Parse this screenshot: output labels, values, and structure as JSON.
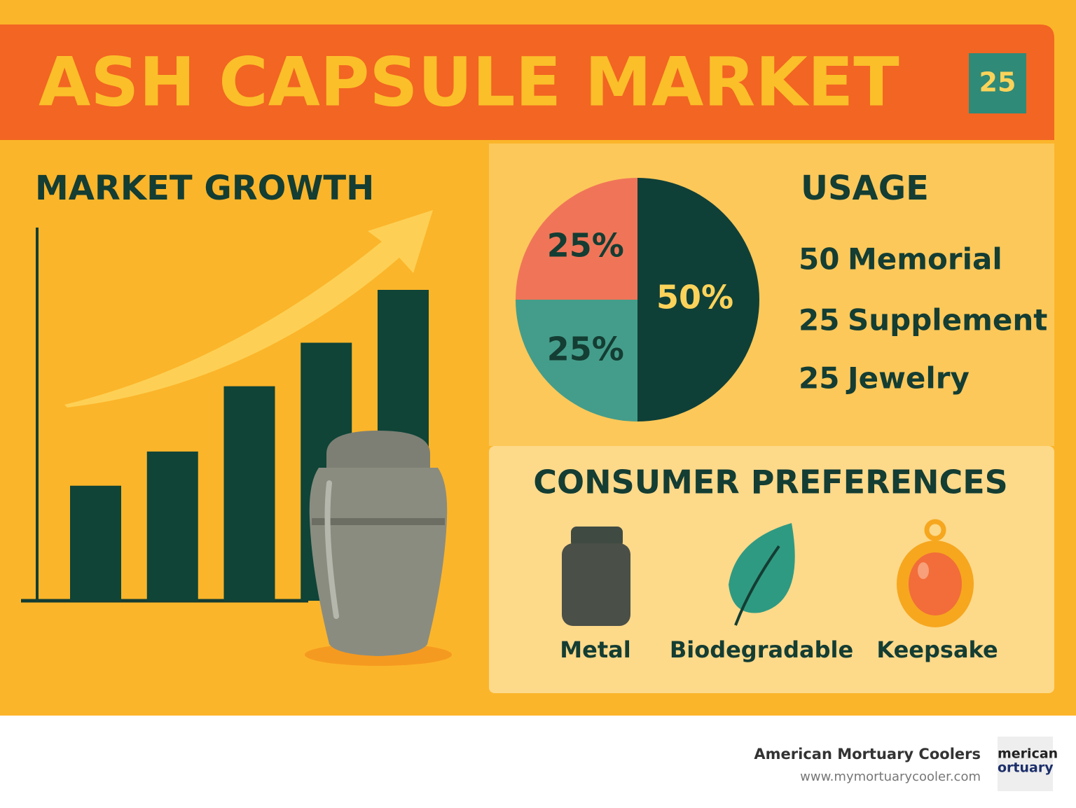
{
  "header": {
    "title": "ASH CAPSULE MARKET",
    "badge": "25"
  },
  "chart_data": [
    {
      "type": "bar",
      "title": "MARKET GROWTH",
      "categories": [
        null,
        null,
        null,
        null,
        null
      ],
      "values": [
        37,
        48,
        69,
        83,
        100
      ],
      "ylim": [
        0,
        100
      ],
      "color": "#0f4437"
    },
    {
      "type": "pie",
      "title": "USAGE",
      "categories": [
        "Memorial",
        "Supplement",
        "Jewelry"
      ],
      "values": [
        50,
        25,
        25
      ],
      "value_labels": [
        "50%",
        "25%",
        "25%"
      ],
      "colors": [
        "#0f4038",
        "#449d8a",
        "#f07558"
      ],
      "label_colors": [
        "#fbd35a",
        "#143d33",
        "#143d33"
      ]
    }
  ],
  "preferences": {
    "title": "CONSUMER PREFERENCES",
    "items": [
      "Metal",
      "Biodegradable",
      "Keepsake"
    ]
  },
  "footer": {
    "company": "American Mortuary Coolers",
    "url": "www.mymortuarycooler.com",
    "logo": [
      "merican",
      "ortuary"
    ]
  }
}
